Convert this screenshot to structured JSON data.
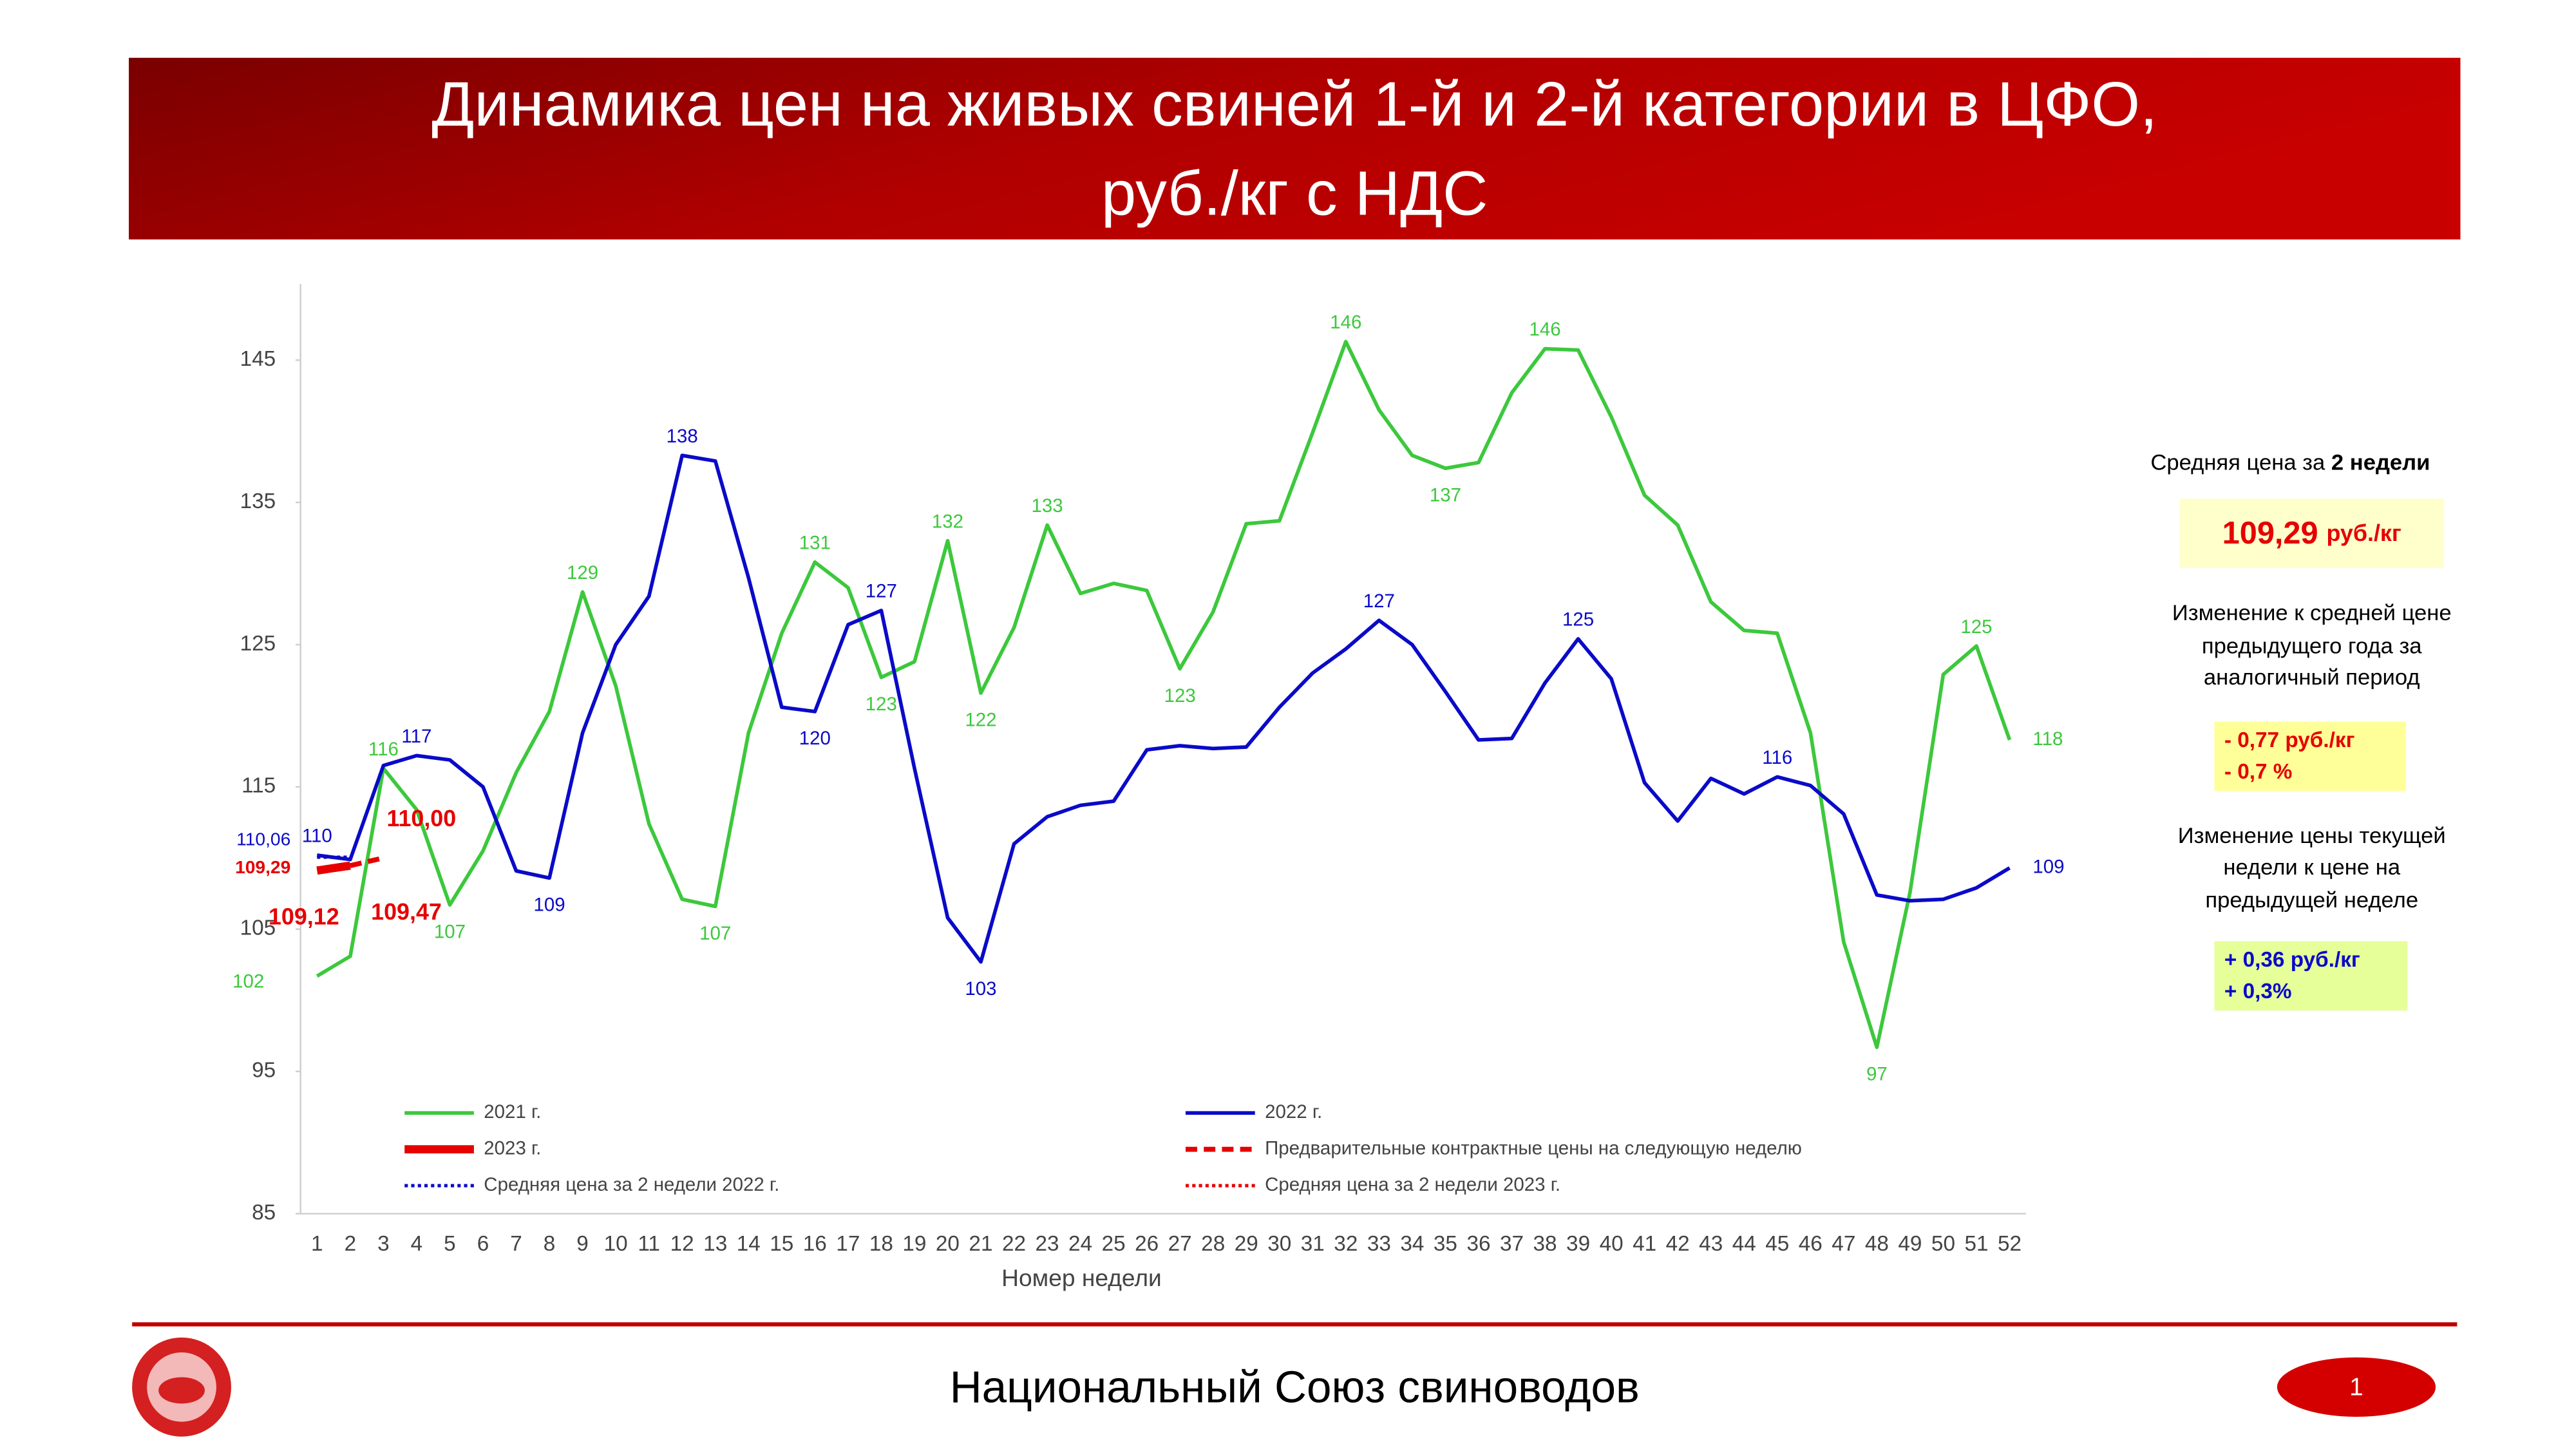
{
  "header": {
    "title_lines": [
      "Динамика цен на живых свиней 1-й и 2-й категории в ЦФО,",
      "руб./кг с НДС"
    ]
  },
  "chart_data": {
    "type": "line",
    "x_label": "Номер недели",
    "categories": [
      "1",
      "2",
      "3",
      "4",
      "5",
      "6",
      "7",
      "8",
      "9",
      "10",
      "11",
      "12",
      "13",
      "14",
      "15",
      "16",
      "17",
      "18",
      "19",
      "20",
      "21",
      "22",
      "23",
      "24",
      "25",
      "26",
      "27",
      "28",
      "29",
      "30",
      "31",
      "32",
      "33",
      "34",
      "35",
      "36",
      "37",
      "38",
      "39",
      "40",
      "41",
      "42",
      "43",
      "44",
      "45",
      "46",
      "47",
      "48",
      "49",
      "50",
      "51",
      "52"
    ],
    "ylim": [
      85,
      150
    ],
    "yticks": [
      85,
      95,
      105,
      115,
      125,
      135,
      145
    ],
    "grid": false,
    "series": [
      {
        "name": "2021 г.",
        "color": "#3cc83c",
        "style": "solid",
        "values": [
          101.7,
          103.1,
          116.3,
          113.4,
          106.7,
          110.5,
          116,
          120.3,
          128.7,
          122.1,
          112.4,
          107.1,
          106.6,
          118.8,
          125.8,
          130.8,
          129,
          122.7,
          123.8,
          132.3,
          121.6,
          126.2,
          133.4,
          128.6,
          129.3,
          128.8,
          123.3,
          127.3,
          133.5,
          133.7,
          139.9,
          146.3,
          141.5,
          138.3,
          137.4,
          137.8,
          142.7,
          145.8,
          145.7,
          141,
          135.5,
          133.4,
          128,
          126,
          125.8,
          118.8,
          104.1,
          96.7,
          107.6,
          122.9,
          124.9,
          118.3
        ],
        "value_labels": [
          "102",
          null,
          "116",
          null,
          "107",
          null,
          null,
          null,
          "129",
          null,
          null,
          null,
          "107",
          null,
          null,
          "131",
          null,
          "123",
          null,
          "132",
          "122",
          null,
          "133",
          null,
          null,
          null,
          "123",
          null,
          null,
          null,
          null,
          "146",
          null,
          null,
          "137",
          null,
          null,
          "146",
          null,
          null,
          null,
          null,
          null,
          null,
          null,
          null,
          null,
          "97",
          null,
          null,
          "125",
          "118"
        ]
      },
      {
        "name": "2022 г.",
        "color": "#0a0ac8",
        "style": "solid",
        "values": [
          110.2,
          109.9,
          116.5,
          117.2,
          116.9,
          115,
          109.1,
          108.6,
          118.8,
          125,
          128.4,
          138.3,
          137.9,
          129.7,
          120.6,
          120.3,
          126.4,
          127.4,
          116.3,
          105.8,
          102.7,
          111,
          112.9,
          113.7,
          114,
          117.6,
          117.9,
          117.7,
          117.8,
          120.6,
          123,
          124.7,
          126.7,
          125,
          121.7,
          118.3,
          118.4,
          122.3,
          125.4,
          122.6,
          115.3,
          112.6,
          115.6,
          114.5,
          115.7,
          115.1,
          113.1,
          107.4,
          107,
          107.1,
          107.9,
          109.3
        ],
        "value_labels": [
          "110",
          null,
          null,
          "117",
          null,
          null,
          null,
          "109",
          null,
          null,
          null,
          "138",
          null,
          null,
          null,
          "120",
          null,
          "127",
          null,
          null,
          "103",
          null,
          null,
          null,
          null,
          null,
          null,
          null,
          null,
          null,
          null,
          null,
          "127",
          null,
          null,
          null,
          null,
          null,
          "125",
          null,
          null,
          null,
          null,
          null,
          "116",
          null,
          null,
          null,
          null,
          null,
          null,
          "109"
        ]
      },
      {
        "name": "2023 г.",
        "color": "#e60000",
        "style": "thick",
        "values": [
          109.12,
          109.47,
          null,
          null,
          null,
          null,
          null,
          null,
          null,
          null,
          null,
          null,
          null,
          null,
          null,
          null,
          null,
          null,
          null,
          null,
          null,
          null,
          null,
          null,
          null,
          null,
          null,
          null,
          null,
          null,
          null,
          null,
          null,
          null,
          null,
          null,
          null,
          null,
          null,
          null,
          null,
          null,
          null,
          null,
          null,
          null,
          null,
          null,
          null,
          null,
          null,
          null
        ],
        "value_labels": [
          "109,12",
          "109,47",
          null,
          null,
          null,
          null,
          null,
          null,
          null,
          null,
          null,
          null,
          null,
          null,
          null,
          null,
          null,
          null,
          null,
          null,
          null,
          null,
          null,
          null,
          null,
          null,
          null,
          null,
          null,
          null,
          null,
          null,
          null,
          null,
          null,
          null,
          null,
          null,
          null,
          null,
          null,
          null,
          null,
          null,
          null,
          null,
          null,
          null,
          null,
          null,
          null,
          null
        ]
      },
      {
        "name": "Предварительные контрактные цены на следующую неделю",
        "color": "#e60000",
        "style": "dashed",
        "values": [
          null,
          109.47,
          110.0,
          null,
          null,
          null,
          null,
          null,
          null,
          null,
          null,
          null,
          null,
          null,
          null,
          null,
          null,
          null,
          null,
          null,
          null,
          null,
          null,
          null,
          null,
          null,
          null,
          null,
          null,
          null,
          null,
          null,
          null,
          null,
          null,
          null,
          null,
          null,
          null,
          null,
          null,
          null,
          null,
          null,
          null,
          null,
          null,
          null,
          null,
          null,
          null,
          null
        ],
        "value_labels": [
          null,
          null,
          "110,00",
          null,
          null,
          null,
          null,
          null,
          null,
          null,
          null,
          null,
          null,
          null,
          null,
          null,
          null,
          null,
          null,
          null,
          null,
          null,
          null,
          null,
          null,
          null,
          null,
          null,
          null,
          null,
          null,
          null,
          null,
          null,
          null,
          null,
          null,
          null,
          null,
          null,
          null,
          null,
          null,
          null,
          null,
          null,
          null,
          null,
          null,
          null,
          null,
          null
        ]
      },
      {
        "name": "Средняя цена за 2 недели 2022 г.",
        "color": "#0a0ac8",
        "style": "dotted",
        "values": [
          110.06,
          110.06,
          null,
          null,
          null,
          null,
          null,
          null,
          null,
          null,
          null,
          null,
          null,
          null,
          null,
          null,
          null,
          null,
          null,
          null,
          null,
          null,
          null,
          null,
          null,
          null,
          null,
          null,
          null,
          null,
          null,
          null,
          null,
          null,
          null,
          null,
          null,
          null,
          null,
          null,
          null,
          null,
          null,
          null,
          null,
          null,
          null,
          null,
          null,
          null,
          null,
          null
        ],
        "value_labels": [
          "110,06",
          null,
          null,
          null,
          null,
          null,
          null,
          null,
          null,
          null,
          null,
          null,
          null,
          null,
          null,
          null,
          null,
          null,
          null,
          null,
          null,
          null,
          null,
          null,
          null,
          null,
          null,
          null,
          null,
          null,
          null,
          null,
          null,
          null,
          null,
          null,
          null,
          null,
          null,
          null,
          null,
          null,
          null,
          null,
          null,
          null,
          null,
          null,
          null,
          null,
          null,
          null
        ]
      },
      {
        "name": "Средняя цена за 2 недели 2023 г.",
        "color": "#e60000",
        "style": "dotted",
        "values": [
          109.29,
          109.29,
          null,
          null,
          null,
          null,
          null,
          null,
          null,
          null,
          null,
          null,
          null,
          null,
          null,
          null,
          null,
          null,
          null,
          null,
          null,
          null,
          null,
          null,
          null,
          null,
          null,
          null,
          null,
          null,
          null,
          null,
          null,
          null,
          null,
          null,
          null,
          null,
          null,
          null,
          null,
          null,
          null,
          null,
          null,
          null,
          null,
          null,
          null,
          null,
          null,
          null
        ],
        "value_labels": [
          "109,29",
          null,
          null,
          null,
          null,
          null,
          null,
          null,
          null,
          null,
          null,
          null,
          null,
          null,
          null,
          null,
          null,
          null,
          null,
          null,
          null,
          null,
          null,
          null,
          null,
          null,
          null,
          null,
          null,
          null,
          null,
          null,
          null,
          null,
          null,
          null,
          null,
          null,
          null,
          null,
          null,
          null,
          null,
          null,
          null,
          null,
          null,
          null,
          null,
          null,
          null,
          null
        ]
      }
    ]
  },
  "side_panel": {
    "avg_title": [
      "Средняя цена за ",
      "2 недели"
    ],
    "avg_price": {
      "value": "109,29",
      "unit": "руб./кг"
    },
    "year_change_title": [
      "Изменение к средней цене",
      "предыдущего года за",
      "аналогичный период"
    ],
    "year_change": [
      "- 0,77 руб./кг",
      "- 0,7 %"
    ],
    "week_change_title": [
      "Изменение цены текущей",
      "недели к цене на",
      "предыдущей неделе"
    ],
    "week_change": [
      "+ 0,36 руб./кг",
      "+ 0,3%"
    ]
  },
  "footer": {
    "organization": "Национальный Союз свиноводов",
    "page": "1"
  }
}
